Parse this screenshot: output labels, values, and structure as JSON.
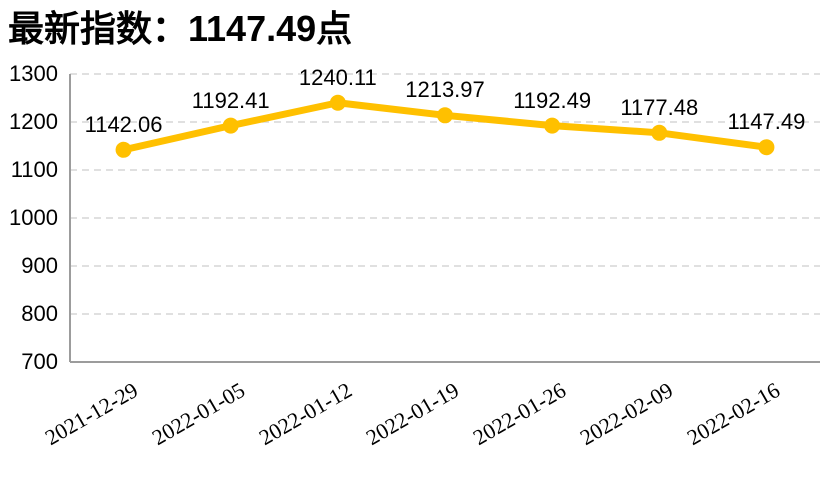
{
  "title": "最新指数：1147.49点",
  "latest_index_value": "1147.49",
  "chart_data": {
    "type": "line",
    "title": "最新指数：1147.49点",
    "categories": [
      "2021-12-29",
      "2022-01-05",
      "2022-01-12",
      "2022-01-19",
      "2022-01-26",
      "2022-02-09",
      "2022-02-16"
    ],
    "values": [
      1142.06,
      1192.41,
      1240.11,
      1213.97,
      1192.49,
      1177.48,
      1147.49
    ],
    "data_labels": [
      "1142.06",
      "1192.41",
      "1240.11",
      "1213.97",
      "1192.49",
      "1177.48",
      "1147.49"
    ],
    "xlabel": "",
    "ylabel": "",
    "ylim": [
      700,
      1300
    ],
    "ytick_step": 100,
    "ytick_labels": [
      "700",
      "800",
      "900",
      "1000",
      "1100",
      "1200",
      "1300"
    ],
    "grid": "horizontal-dashed",
    "legend": "none",
    "marker": "circle"
  },
  "colors": {
    "line": "#FFC000",
    "marker": "#FFC000",
    "gridline": "#D6D6D6",
    "axis": "#9C9C9C",
    "text": "#000000",
    "background": "#FFFFFF"
  }
}
